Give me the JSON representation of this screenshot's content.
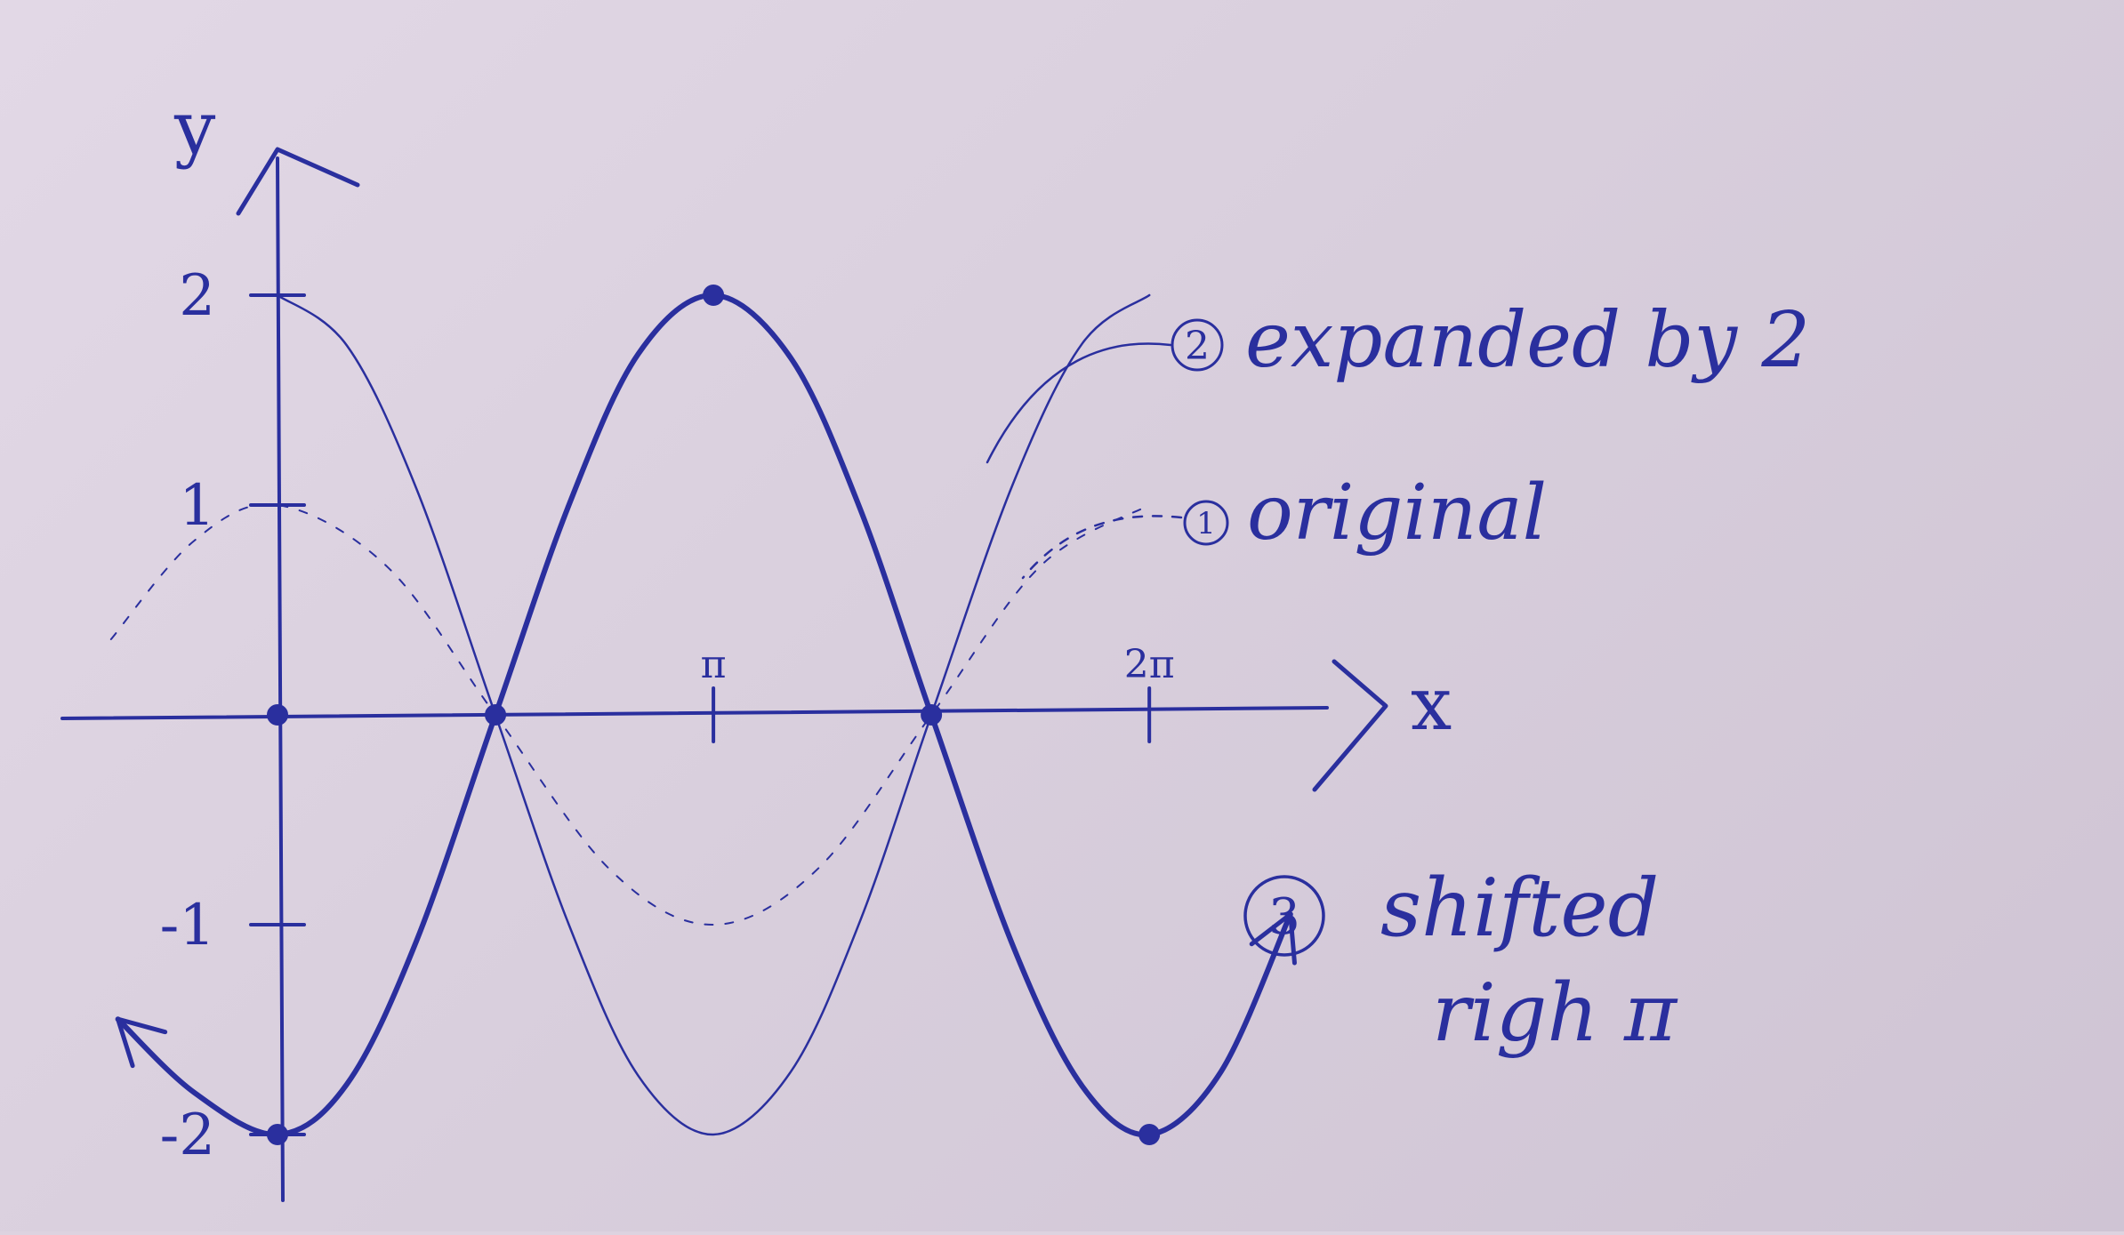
{
  "chart_data": {
    "type": "line",
    "xlabel": "x",
    "ylabel": "y",
    "x_ticks": [
      {
        "value": 3.14159,
        "label": "π"
      },
      {
        "value": 6.28318,
        "label": "2π"
      }
    ],
    "y_ticks": [
      {
        "value": 2,
        "label": "2"
      },
      {
        "value": 1,
        "label": "1"
      },
      {
        "value": -1,
        "label": "-1"
      },
      {
        "value": -2,
        "label": "-2"
      }
    ],
    "xlim": [
      -1.5,
      7.6
    ],
    "ylim": [
      -2.3,
      2.5
    ],
    "grid": false,
    "series": [
      {
        "name": "original",
        "number": "1",
        "style": "dotted",
        "stroke_width": 2,
        "x": [
          -1.2,
          -0.6,
          0,
          0.8,
          1.5708,
          2.4,
          3.14159,
          3.9,
          4.7124,
          5.5,
          6.28318
        ],
        "y": [
          0.36,
          0.83,
          1.0,
          0.7,
          0.0,
          -0.74,
          -1.0,
          -0.73,
          0.0,
          0.71,
          1.0
        ]
      },
      {
        "name": "expanded by 2",
        "number": "2",
        "style": "solid",
        "stroke_width": 2.5,
        "x": [
          0,
          0.5,
          1.0,
          1.5708,
          2.1,
          2.6,
          3.14159,
          3.7,
          4.2,
          4.7124,
          5.3,
          5.8,
          6.28318
        ],
        "y": [
          2.0,
          1.76,
          1.08,
          0.0,
          -1.0,
          -1.72,
          -2.0,
          -1.7,
          -0.98,
          0.0,
          1.1,
          1.77,
          2.0
        ]
      },
      {
        "name": "shifted righ π",
        "number": "3",
        "style": "solid-bold",
        "stroke_width": 6,
        "x": [
          -1.15,
          -0.6,
          0,
          0.5,
          1.0,
          1.5708,
          2.1,
          2.6,
          3.14159,
          3.7,
          4.2,
          4.7124,
          5.3,
          5.8,
          6.28318,
          6.8,
          7.3
        ],
        "y": [
          -1.45,
          -1.8,
          -2.0,
          -1.76,
          -1.08,
          0.0,
          1.0,
          1.72,
          2.0,
          1.7,
          0.98,
          0.0,
          -1.1,
          -1.77,
          -2.0,
          -1.7,
          -0.95
        ]
      }
    ],
    "marked_points": [
      {
        "x": 0,
        "y": 0
      },
      {
        "x": 1.5708,
        "y": 0
      },
      {
        "x": 3.14159,
        "y": 2
      },
      {
        "x": 4.7124,
        "y": 0
      },
      {
        "x": 0,
        "y": -2
      },
      {
        "x": 6.28318,
        "y": -2
      }
    ],
    "annotations": [
      {
        "number": "2",
        "text": "expanded by 2",
        "series": "expanded by 2"
      },
      {
        "number": "1",
        "text": "original",
        "series": "original"
      },
      {
        "number": "3",
        "text": "shifted",
        "text2": "righ π",
        "series": "shifted righ π"
      }
    ],
    "ink_color": "#2a2f9e",
    "paper_color": "#ddd3e0"
  }
}
